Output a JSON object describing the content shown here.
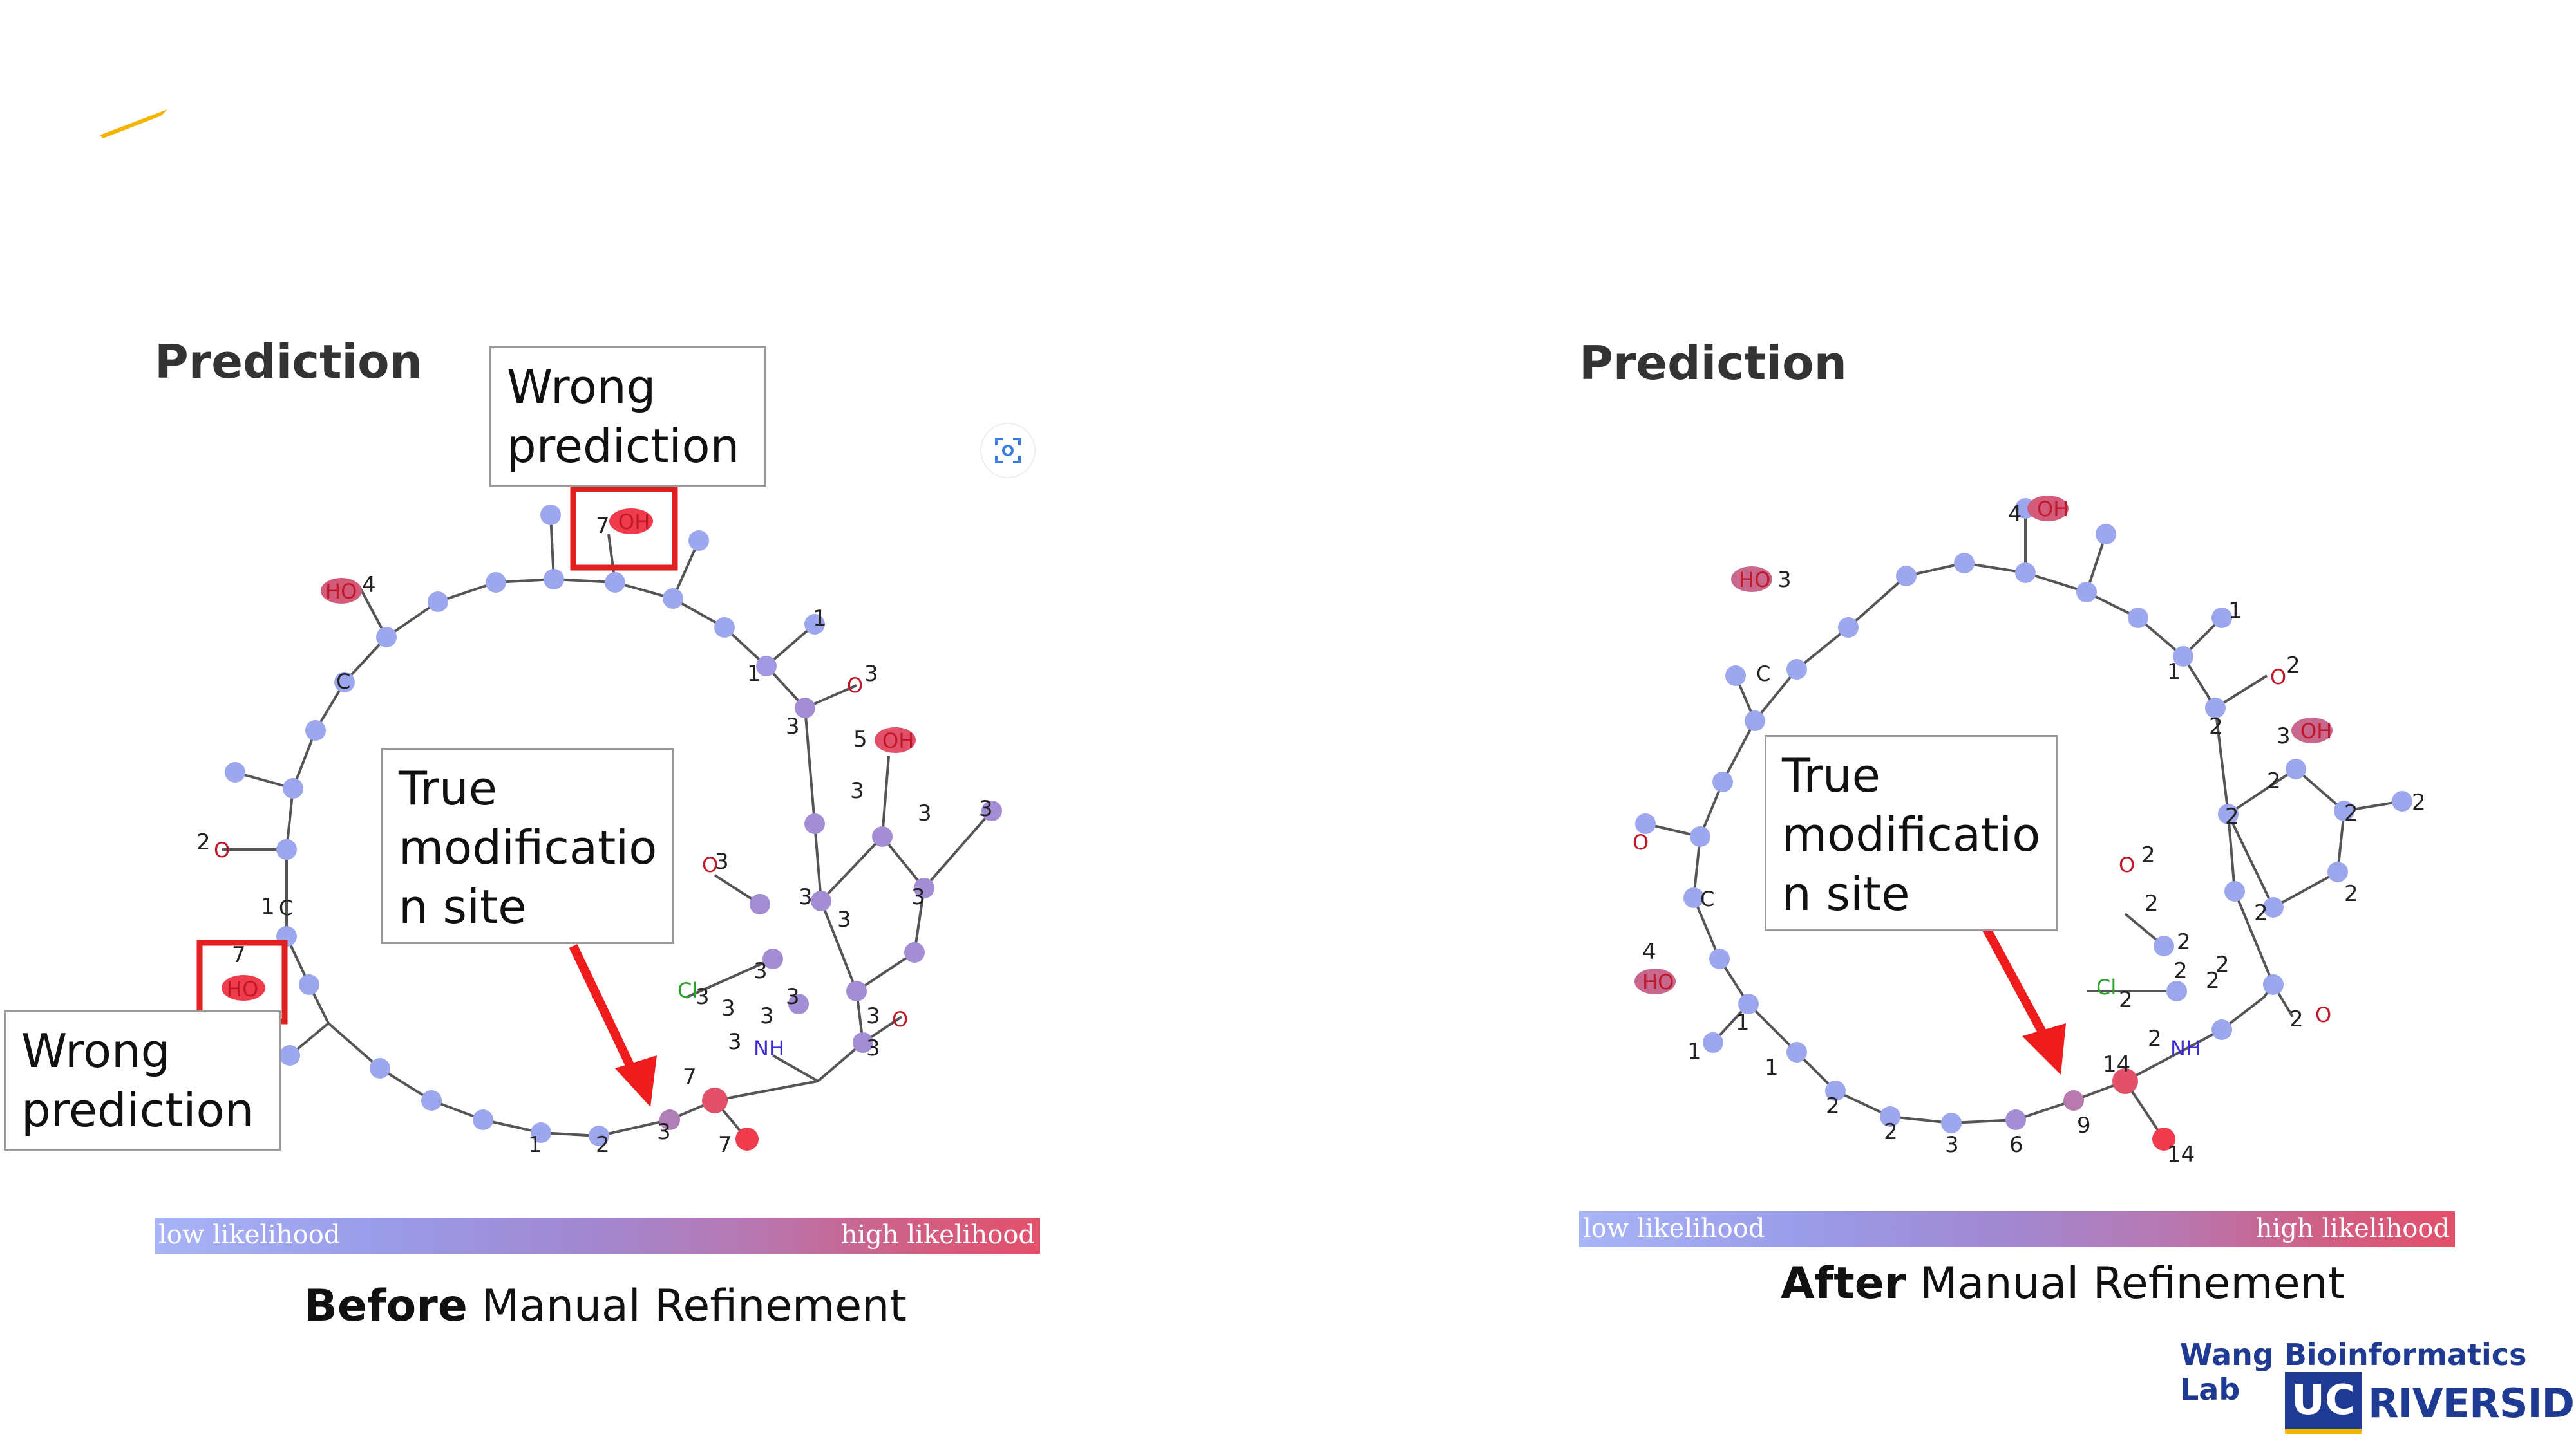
{
  "left": {
    "title": "Prediction",
    "callout_top": "Wrong\nprediction",
    "callout_bottom": "Wrong\nprediction",
    "callout_center": "True\nmodificatio\nn site",
    "scale_low": "low likelihood",
    "scale_high": "high likelihood",
    "caption_bold": "Before",
    "caption_rest": " Manual Refinement",
    "atoms": [
      {
        "label": "7",
        "t": "7"
      },
      {
        "label": "OH",
        "t": "OH"
      },
      {
        "label": "HO",
        "t": "HO"
      },
      {
        "label": "4",
        "t": "4"
      },
      {
        "label": "C",
        "t": "C"
      },
      {
        "label": "1",
        "t": "1"
      },
      {
        "label": "O",
        "t": "O"
      },
      {
        "label": "3",
        "t": "3"
      }
    ]
  },
  "right": {
    "title": "Prediction",
    "callout_center": "True\nmodificatio\nn site",
    "scale_low": "low likelihood",
    "scale_high": "high likelihood",
    "caption_bold": "After",
    "caption_rest": " Manual Refinement"
  },
  "lab": {
    "name": "Wang Bioinformatics Lab",
    "uc": "UC",
    "riverside": "RIVERSIDE"
  },
  "colors": {
    "wrong_box": "#e02020",
    "arrow": "#ee1c1c",
    "logo_accent": "#f5b400",
    "lab_blue": "#1f3a93"
  }
}
